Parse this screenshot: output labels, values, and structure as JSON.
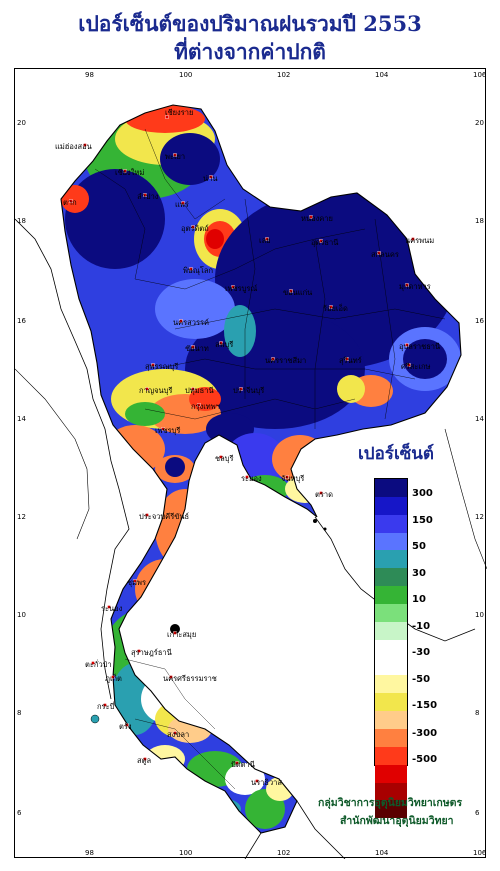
{
  "title_line1": "เปอร์เซ็นต์ของปริมาณฝนรวมปี 2553",
  "title_line2": "ที่ต่างจากค่าปกติ",
  "legend": {
    "title": "เปอร์เซ็นต์",
    "colors": [
      "#0b0b80",
      "#1616c8",
      "#3a3aee",
      "#5a74ff",
      "#2aa0b0",
      "#2e8b57",
      "#35b435",
      "#7be07b",
      "#c8f5c8",
      "#ffffff",
      "#ffffff",
      "#fff7a0",
      "#f2e64c",
      "#ffcc8a",
      "#ff8040",
      "#ff3a1a",
      "#e00000",
      "#a80000",
      "#5a0000"
    ],
    "labels": [
      "300",
      "150",
      "50",
      "30",
      "10",
      "-10",
      "-30",
      "-50",
      "-150",
      "-300",
      "-500"
    ]
  },
  "axes": {
    "longitude": [
      "98",
      "100",
      "102",
      "104",
      "106"
    ],
    "latitude": [
      "20",
      "18",
      "16",
      "14",
      "12",
      "10",
      "8",
      "6"
    ]
  },
  "places": [
    "เชียงราย",
    "แม่ฮ่องสอน",
    "เชียงใหม่",
    "พะเยา",
    "น่าน",
    "ลำปาง",
    "แพร่",
    "ตาก",
    "อุตรดิตถ์",
    "หนองคาย",
    "นครพนม",
    "เลย",
    "อุดรธานี",
    "สกลนคร",
    "มุกดาหาร",
    "พิษณุโลก",
    "ขอนแก่น",
    "เพชรบูรณ์",
    "ร้อยเอ็ด",
    "นครสวรรค์",
    "อุบลราชธานี",
    "ลพบุรี",
    "ชัยนาท",
    "นครราชสีมา",
    "สุรินทร์",
    "ศรีสะเกษ",
    "สุพรรณบุรี",
    "กาญจนบุรี",
    "ปทุมธานี",
    "ปราจีนบุรี",
    "กรุงเทพฯ",
    "เพชรบุรี",
    "ชลบุรี",
    "ระยอง",
    "จันทบุรี",
    "ตราด",
    "ประจวบคีรีขันธ์",
    "ชุมพร",
    "ระนอง",
    "เกาะสมุย",
    "สุราษฎร์ธานี",
    "ตะกั่วป่า",
    "ภูเก็ต",
    "นครศรีธรรมราช",
    "กระบี่",
    "ตรัง",
    "สงขลา",
    "สตูล",
    "ปัตตานี",
    "นราธิวาส"
  ],
  "credit_line1": "กลุ่มวิชาการอุตุนิยมวิทยาเกษตร",
  "credit_line2": "สำนักพัฒนาอุตุนิยมวิทยา"
}
